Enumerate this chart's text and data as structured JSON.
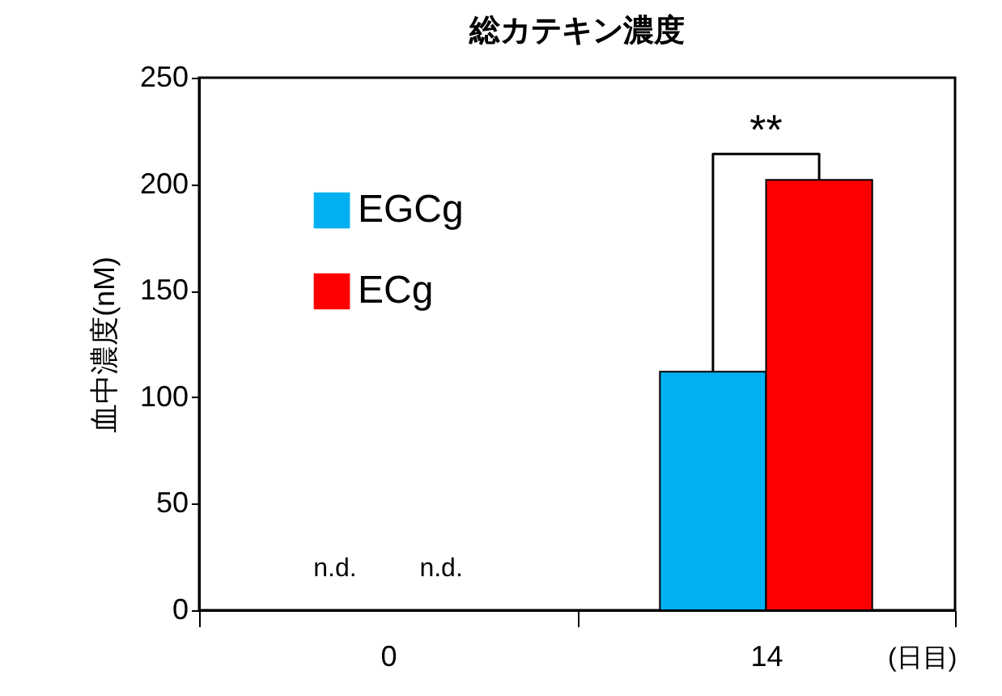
{
  "chart_data": {
    "type": "bar",
    "title": "総カテキン濃度",
    "ylabel": "血中濃度(nM)",
    "xlabel": "(日目)",
    "categories": [
      "0",
      "14"
    ],
    "series": [
      {
        "name": "EGCg",
        "color": "#00b0f0",
        "values": [
          null,
          112
        ],
        "value_labels": [
          "n.d.",
          null
        ]
      },
      {
        "name": "ECg",
        "color": "#ff0000",
        "values": [
          null,
          202
        ],
        "value_labels": [
          "n.d.",
          null
        ]
      }
    ],
    "ylim": [
      0,
      250
    ],
    "yticks": [
      0,
      50,
      100,
      150,
      200,
      250
    ],
    "grid": false,
    "legend": "top left",
    "annotations": [
      {
        "text": "**",
        "x": "14",
        "y": 202
      }
    ]
  }
}
